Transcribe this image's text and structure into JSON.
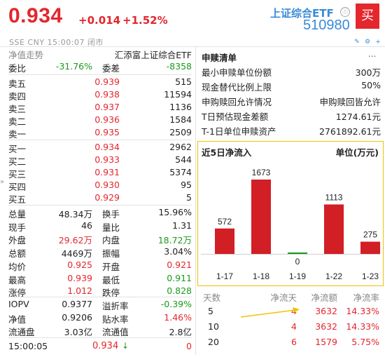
{
  "header": {
    "price": "0.934",
    "change": "+0.014",
    "change_pct": "+1.52%",
    "meta": "SSE  CNY  15:00:07  闭市",
    "fund_name": "上证综合ETF",
    "fund_code": "510980",
    "buy_label": "买",
    "info_icon": "ⓘ",
    "colors": {
      "up": "#e4262d",
      "down": "#1b9a1b",
      "accent": "#3a8ad8"
    }
  },
  "left": {
    "trend_label": "净值走势",
    "index_name": "汇添富上证综合ETF",
    "weibi_label": "委比",
    "weibi": "-31.76%",
    "weicha_label": "委差",
    "weicha": "-8358",
    "asks": [
      {
        "label": "卖五",
        "price": "0.939",
        "vol": "515"
      },
      {
        "label": "卖四",
        "price": "0.938",
        "vol": "11594"
      },
      {
        "label": "卖三",
        "price": "0.937",
        "vol": "1136"
      },
      {
        "label": "卖二",
        "price": "0.936",
        "vol": "1584"
      },
      {
        "label": "卖一",
        "price": "0.935",
        "vol": "2509"
      }
    ],
    "bids": [
      {
        "label": "买一",
        "price": "0.934",
        "vol": "2962"
      },
      {
        "label": "买二",
        "price": "0.933",
        "vol": "544"
      },
      {
        "label": "买三",
        "price": "0.931",
        "vol": "5374"
      },
      {
        "label": "买四",
        "price": "0.930",
        "vol": "95"
      },
      {
        "label": "买五",
        "price": "0.929",
        "vol": "5"
      }
    ],
    "stats": [
      {
        "l1": "总量",
        "v1": "48.34万",
        "c1": "dark",
        "l2": "换手",
        "v2": "15.96%",
        "c2": "dark"
      },
      {
        "l1": "现手",
        "v1": "46",
        "c1": "dark",
        "l2": "量比",
        "v2": "1.31",
        "c2": "dark"
      },
      {
        "l1": "外盘",
        "v1": "29.62万",
        "c1": "red",
        "l2": "内盘",
        "v2": "18.72万",
        "c2": "green"
      },
      {
        "l1": "总额",
        "v1": "4469万",
        "c1": "dark",
        "l2": "振幅",
        "v2": "3.04%",
        "c2": "dark"
      },
      {
        "l1": "均价",
        "v1": "0.925",
        "c1": "red",
        "l2": "开盘",
        "v2": "0.921",
        "c2": "red"
      },
      {
        "l1": "最高",
        "v1": "0.939",
        "c1": "red",
        "l2": "最低",
        "v2": "0.911",
        "c2": "green"
      },
      {
        "l1": "涨停",
        "v1": "1.012",
        "c1": "red",
        "l2": "跌停",
        "v2": "0.828",
        "c2": "green"
      }
    ],
    "stats2": [
      {
        "l1": "IOPV",
        "v1": "0.9377",
        "c1": "dark",
        "l2": "溢折率",
        "v2": "-0.39%",
        "c2": "green"
      },
      {
        "l1": "净值",
        "v1": "0.9206",
        "c1": "dark",
        "l2": "贴水率",
        "v2": "1.46%",
        "c2": "red"
      },
      {
        "l1": "流通盘",
        "v1": "3.03亿",
        "c1": "dark",
        "l2": "流通值",
        "v2": "2.8亿",
        "c2": "dark"
      }
    ],
    "last_trade": {
      "time": "15:00:05",
      "price": "0.934",
      "arrow": "↓",
      "vol": "0"
    }
  },
  "right": {
    "title": "申赎清单",
    "more": "...",
    "items": [
      {
        "label": "最小申赎单位份额",
        "value": "300万"
      },
      {
        "label": "现金替代比例上限",
        "value": "50%"
      },
      {
        "label": "申购赎回允许情况",
        "value": "申购赎回皆允许"
      },
      {
        "label": "T日预估现金差额",
        "value": "1274.61元"
      },
      {
        "label": "T-1日单位申赎资产",
        "value": "2761892.61元"
      }
    ],
    "flow": {
      "title": "近5日净流入",
      "unit": "单位(万元)",
      "headers": [
        "天数",
        "净流天",
        "净流额",
        "净流率"
      ],
      "rows": [
        {
          "days": "5",
          "flow_days": "4",
          "amount": "3632",
          "rate": "14.33%"
        },
        {
          "days": "10",
          "flow_days": "4",
          "amount": "3632",
          "rate": "14.33%"
        },
        {
          "days": "20",
          "flow_days": "6",
          "amount": "1579",
          "rate": "5.75%"
        }
      ]
    }
  },
  "chart_data": {
    "type": "bar",
    "categories": [
      "1-17",
      "1-18",
      "1-19",
      "1-22",
      "1-23"
    ],
    "values": [
      572,
      1673,
      0,
      1113,
      275
    ],
    "title": "近5日净流入",
    "ylabel": "单位(万元)",
    "colors": {
      "positive": "#d21e25",
      "zero": "#1b9a1b"
    }
  }
}
